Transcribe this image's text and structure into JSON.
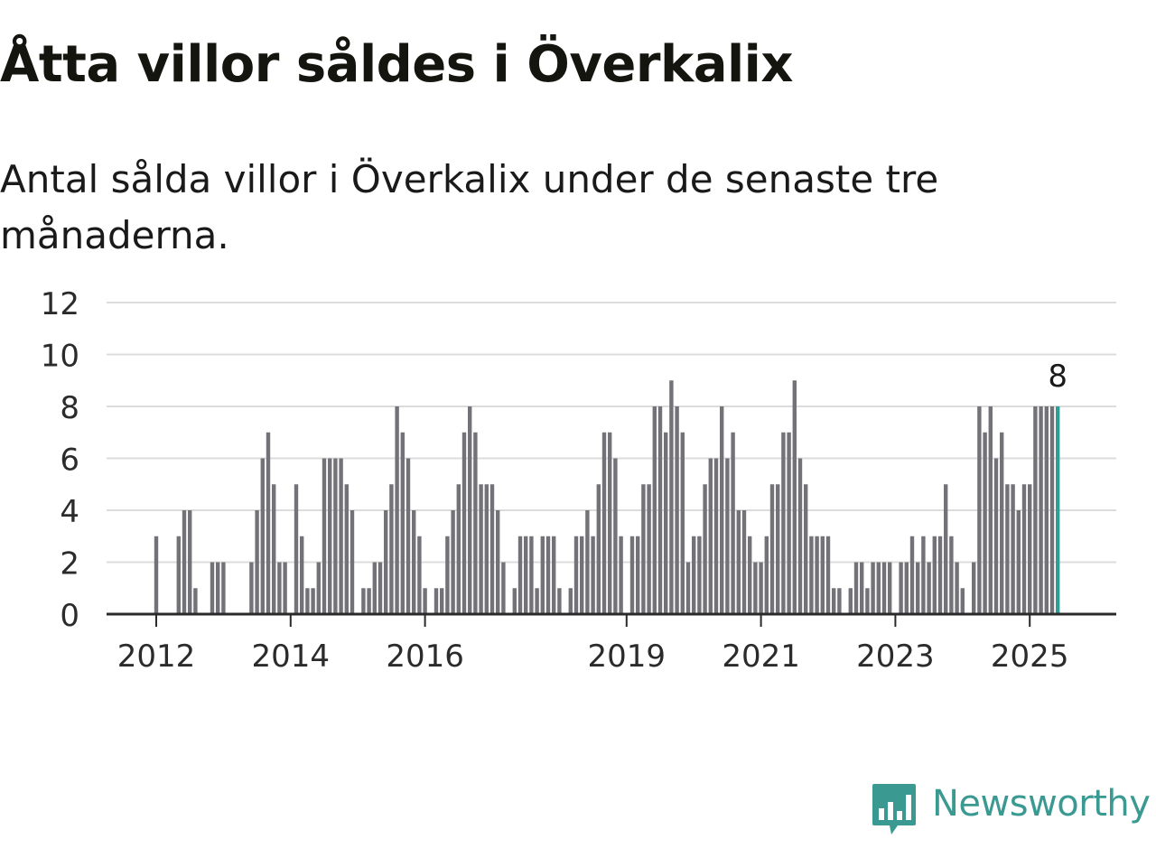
{
  "title": "Åtta villor såldes i Överkalix",
  "subtitle": "Antal sålda villor i Överkalix under de senaste tre månaderna.",
  "brand": {
    "name": "Newsworthy",
    "icon": "newsworthy-logo-icon",
    "color": "#3a9a92"
  },
  "chart_data": {
    "type": "bar",
    "ylim": [
      0,
      12
    ],
    "yticks": [
      0,
      2,
      4,
      6,
      8,
      10,
      12
    ],
    "xtick_labels": [
      {
        "label": "2012",
        "index": 1
      },
      {
        "label": "2014",
        "index": 25
      },
      {
        "label": "2016",
        "index": 49
      },
      {
        "label": "2019",
        "index": 85
      },
      {
        "label": "2021",
        "index": 109
      },
      {
        "label": "2023",
        "index": 133
      },
      {
        "label": "2025",
        "index": 157
      }
    ],
    "colors": {
      "bar": "#737278",
      "highlight": "#2f9e95",
      "grid": "#dcdcdc",
      "axis": "#2a2a2a"
    },
    "highlight_label": "8",
    "values": [
      0,
      3,
      0,
      0,
      0,
      3,
      4,
      4,
      1,
      0,
      0,
      2,
      2,
      2,
      0,
      0,
      0,
      0,
      2,
      4,
      6,
      7,
      5,
      2,
      2,
      0,
      5,
      3,
      1,
      1,
      2,
      6,
      6,
      6,
      6,
      5,
      4,
      0,
      1,
      1,
      2,
      2,
      4,
      5,
      8,
      7,
      6,
      4,
      3,
      1,
      0,
      1,
      1,
      3,
      4,
      5,
      7,
      8,
      7,
      5,
      5,
      5,
      4,
      2,
      0,
      1,
      3,
      3,
      3,
      1,
      3,
      3,
      3,
      1,
      0,
      1,
      3,
      3,
      4,
      3,
      5,
      7,
      7,
      6,
      3,
      0,
      3,
      3,
      5,
      5,
      8,
      8,
      7,
      9,
      8,
      7,
      2,
      3,
      3,
      5,
      6,
      6,
      8,
      6,
      7,
      4,
      4,
      3,
      2,
      2,
      3,
      5,
      5,
      7,
      7,
      9,
      6,
      5,
      3,
      3,
      3,
      3,
      1,
      1,
      0,
      1,
      2,
      2,
      1,
      2,
      2,
      2,
      2,
      0,
      2,
      2,
      3,
      2,
      3,
      2,
      3,
      3,
      5,
      3,
      2,
      1,
      0,
      2,
      8,
      7,
      8,
      6,
      7,
      5,
      5,
      4,
      5,
      5,
      8,
      8,
      8,
      8,
      8
    ]
  }
}
